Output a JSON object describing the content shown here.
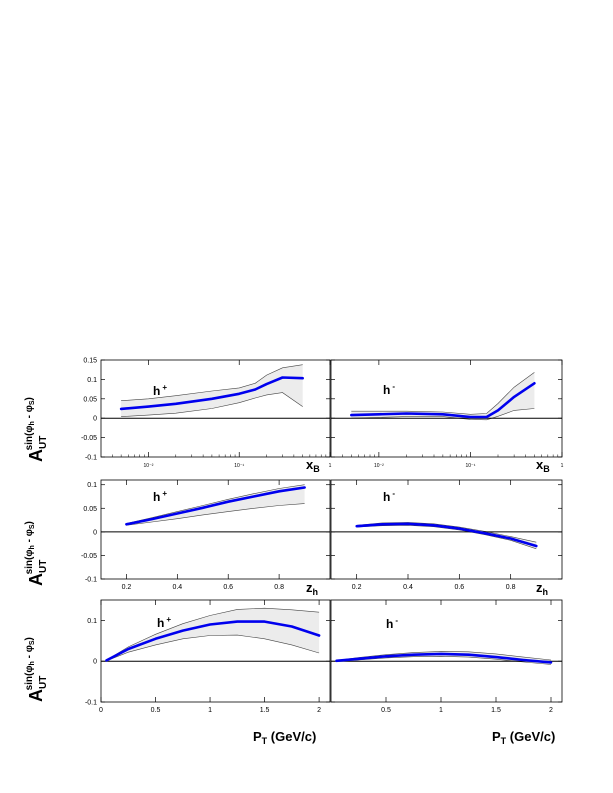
{
  "y_axis_label": {
    "main": "A",
    "sub": "UT",
    "sup_prefix": "sin(",
    "phi_h": "φ",
    "sub_h": "h",
    "minus": " - ",
    "phi_s": "φ",
    "sub_s": "S",
    "sup_suffix": ")"
  },
  "x_axis_labels": {
    "xB": {
      "main": "x",
      "sub": "B"
    },
    "zh": {
      "main": "z",
      "sub": "h"
    },
    "pt": {
      "main": "P",
      "sub": "T",
      "rest": " (GeV/c)"
    }
  },
  "colors": {
    "curve": "#0000ee",
    "band": "#ececec",
    "band_edge": "#444444",
    "axis": "#000000"
  },
  "chart_data": [
    {
      "type": "area",
      "panel": "h+ vs xB",
      "label": "h",
      "label_sup": "+",
      "xscale": "log",
      "xlim": [
        0.003,
        1
      ],
      "ylim": [
        -0.1,
        0.15
      ],
      "xticks": [
        "10⁻²",
        "10⁻¹",
        "1"
      ],
      "yticks": [
        "-0.1",
        "-0.05",
        "0",
        "0.05",
        "0.1",
        "0.15"
      ],
      "x": [
        0.005,
        0.01,
        0.02,
        0.05,
        0.1,
        0.15,
        0.2,
        0.3,
        0.5
      ],
      "central": [
        0.024,
        0.03,
        0.037,
        0.05,
        0.063,
        0.074,
        0.088,
        0.105,
        0.103
      ],
      "lower": [
        0.004,
        0.008,
        0.013,
        0.025,
        0.04,
        0.052,
        0.06,
        0.066,
        0.03
      ],
      "upper": [
        0.045,
        0.05,
        0.058,
        0.07,
        0.078,
        0.09,
        0.111,
        0.13,
        0.138
      ]
    },
    {
      "type": "area",
      "panel": "h- vs xB",
      "label": "h",
      "label_sup": "-",
      "xscale": "log",
      "xlim": [
        0.003,
        1
      ],
      "ylim": [
        -0.1,
        0.15
      ],
      "xticks": [
        "10⁻²",
        "10⁻¹",
        "1"
      ],
      "yticks": [],
      "x": [
        0.005,
        0.01,
        0.02,
        0.05,
        0.1,
        0.15,
        0.2,
        0.3,
        0.5
      ],
      "central": [
        0.008,
        0.01,
        0.012,
        0.01,
        0.003,
        0.003,
        0.02,
        0.055,
        0.09
      ],
      "lower": [
        0.0,
        0.002,
        0.004,
        0.004,
        -0.003,
        -0.004,
        0.005,
        0.02,
        0.025
      ],
      "upper": [
        0.018,
        0.018,
        0.018,
        0.016,
        0.01,
        0.012,
        0.038,
        0.08,
        0.118
      ]
    },
    {
      "type": "area",
      "panel": "h+ vs zh",
      "label": "h",
      "label_sup": "+",
      "xscale": "linear",
      "xlim": [
        0.1,
        1
      ],
      "ylim": [
        -0.1,
        0.11
      ],
      "xticks": [
        "0.2",
        "0.4",
        "0.6",
        "0.8"
      ],
      "yticks": [
        "-0.1",
        "-0.05",
        "0",
        "0.05",
        "0.1"
      ],
      "x": [
        0.2,
        0.3,
        0.4,
        0.5,
        0.6,
        0.7,
        0.8,
        0.9
      ],
      "central": [
        0.016,
        0.027,
        0.039,
        0.051,
        0.064,
        0.075,
        0.086,
        0.094
      ],
      "lower": [
        0.014,
        0.021,
        0.028,
        0.036,
        0.043,
        0.05,
        0.056,
        0.06
      ],
      "upper": [
        0.018,
        0.03,
        0.043,
        0.056,
        0.069,
        0.081,
        0.092,
        0.1
      ]
    },
    {
      "type": "area",
      "panel": "h- vs zh",
      "label": "h",
      "label_sup": "-",
      "xscale": "linear",
      "xlim": [
        0.1,
        1
      ],
      "ylim": [
        -0.1,
        0.11
      ],
      "xticks": [
        "0.2",
        "0.4",
        "0.6",
        "0.8"
      ],
      "yticks": [],
      "x": [
        0.2,
        0.3,
        0.4,
        0.5,
        0.6,
        0.7,
        0.8,
        0.9
      ],
      "central": [
        0.012,
        0.016,
        0.017,
        0.014,
        0.007,
        -0.003,
        -0.014,
        -0.03
      ],
      "lower": [
        0.01,
        0.013,
        0.014,
        0.011,
        0.004,
        -0.006,
        -0.018,
        -0.036
      ],
      "upper": [
        0.014,
        0.019,
        0.02,
        0.017,
        0.01,
        0.001,
        -0.01,
        -0.022
      ]
    },
    {
      "type": "area",
      "panel": "h+ vs PT",
      "label": "h",
      "label_sup": "+",
      "xscale": "linear",
      "xlim": [
        0,
        2.1
      ],
      "ylim": [
        -0.1,
        0.15
      ],
      "xticks": [
        "0",
        "0.5",
        "1",
        "1.5",
        "2"
      ],
      "yticks": [
        "-0.1",
        "0",
        "0.1"
      ],
      "x": [
        0.05,
        0.25,
        0.5,
        0.75,
        1.0,
        1.25,
        1.5,
        1.75,
        2.0
      ],
      "central": [
        0.002,
        0.03,
        0.055,
        0.075,
        0.09,
        0.097,
        0.097,
        0.085,
        0.063
      ],
      "lower": [
        0.001,
        0.022,
        0.04,
        0.055,
        0.063,
        0.064,
        0.055,
        0.04,
        0.02
      ],
      "upper": [
        0.003,
        0.035,
        0.066,
        0.092,
        0.112,
        0.127,
        0.13,
        0.126,
        0.12
      ]
    },
    {
      "type": "area",
      "panel": "h- vs PT",
      "label": "h",
      "label_sup": "-",
      "xscale": "linear",
      "xlim": [
        0,
        2.1
      ],
      "ylim": [
        -0.1,
        0.15
      ],
      "xticks": [
        "0.5",
        "1",
        "1.5",
        "2"
      ],
      "yticks": [],
      "x": [
        0.05,
        0.25,
        0.5,
        0.75,
        1.0,
        1.25,
        1.5,
        1.75,
        2.0
      ],
      "central": [
        0.001,
        0.006,
        0.012,
        0.016,
        0.018,
        0.016,
        0.01,
        0.003,
        -0.003
      ],
      "lower": [
        0.0,
        0.003,
        0.008,
        0.011,
        0.012,
        0.01,
        0.005,
        -0.002,
        -0.008
      ],
      "upper": [
        0.002,
        0.009,
        0.016,
        0.021,
        0.024,
        0.023,
        0.018,
        0.01,
        0.003
      ]
    }
  ]
}
